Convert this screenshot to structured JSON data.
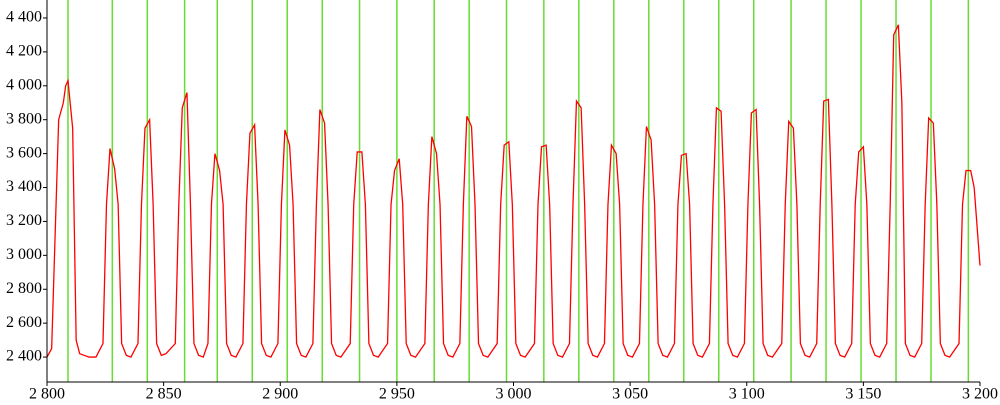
{
  "chart_data": {
    "type": "line",
    "color": "#ff0000",
    "vline_color": "#66dd33",
    "xlim": [
      2800,
      3200
    ],
    "ylim": [
      2253,
      4506
    ],
    "xticks": [
      {
        "value": 2800,
        "label": "2 800"
      },
      {
        "value": 2850,
        "label": "2 850"
      },
      {
        "value": 2900,
        "label": "2 900"
      },
      {
        "value": 2950,
        "label": "2 950"
      },
      {
        "value": 3000,
        "label": "3 000"
      },
      {
        "value": 3050,
        "label": "3 050"
      },
      {
        "value": 3100,
        "label": "3 100"
      },
      {
        "value": 3150,
        "label": "3 150"
      },
      {
        "value": 3200,
        "label": "3 200"
      }
    ],
    "yticks": [
      {
        "value": 2400,
        "label": "2 400"
      },
      {
        "value": 2600,
        "label": "2 600"
      },
      {
        "value": 2800,
        "label": "2 800"
      },
      {
        "value": 3000,
        "label": "3 000"
      },
      {
        "value": 3200,
        "label": "3 200"
      },
      {
        "value": 3400,
        "label": "3 400"
      },
      {
        "value": 3600,
        "label": "3 600"
      },
      {
        "value": 3800,
        "label": "3 800"
      },
      {
        "value": 4000,
        "label": "4 000"
      },
      {
        "value": 4200,
        "label": "4 200"
      },
      {
        "value": 4400,
        "label": "4 400"
      }
    ],
    "vlines": [
      2809,
      2828,
      2843,
      2859,
      2873,
      2888,
      2903,
      2918,
      2934,
      2950,
      2966,
      2981,
      2997,
      3013,
      3028,
      3043,
      3058,
      3073,
      3088,
      3103,
      3119,
      3134,
      3149,
      3164,
      3179,
      3195
    ],
    "x": [
      2800,
      2802,
      2805,
      2807,
      2808,
      2809,
      2811,
      2812.5,
      2814,
      2818,
      2821,
      2824,
      2825.5,
      2827,
      2829,
      2830.5,
      2832,
      2834,
      2836,
      2839,
      2840.5,
      2842,
      2844,
      2845.5,
      2847,
      2849,
      2851,
      2855,
      2856.5,
      2858,
      2860,
      2861.5,
      2863,
      2865,
      2867,
      2869,
      2870.5,
      2872,
      2874,
      2875.5,
      2877,
      2879,
      2881,
      2884,
      2885.5,
      2887,
      2889,
      2890.5,
      2892,
      2894,
      2896,
      2899,
      2900.5,
      2902,
      2904,
      2905.5,
      2907,
      2909,
      2911,
      2914,
      2915.5,
      2917,
      2919,
      2920.5,
      2922,
      2924,
      2926,
      2930,
      2931.5,
      2933,
      2935,
      2936.5,
      2938,
      2940,
      2942,
      2946,
      2947.5,
      2949,
      2951,
      2952.5,
      2954,
      2956,
      2958,
      2962,
      2963.5,
      2965,
      2967,
      2968.5,
      2970,
      2972,
      2974,
      2977,
      2978.5,
      2980,
      2982,
      2983.5,
      2985,
      2987,
      2989,
      2993,
      2994.5,
      2996,
      2998,
      2999.5,
      3001,
      3003,
      3005,
      3009,
      3010.5,
      3012,
      3014,
      3015.5,
      3017,
      3019,
      3021,
      3024,
      3025.5,
      3027,
      3029,
      3030.5,
      3032,
      3034,
      3036,
      3039,
      3040.5,
      3042,
      3044,
      3045.5,
      3047,
      3049,
      3051,
      3054,
      3055.5,
      3057,
      3059,
      3060.5,
      3062,
      3064,
      3066,
      3069,
      3070.5,
      3072,
      3074,
      3075.5,
      3077,
      3079,
      3081,
      3084,
      3085.5,
      3087,
      3089,
      3090.5,
      3092,
      3094,
      3096,
      3099,
      3100.5,
      3102,
      3104,
      3105.5,
      3107,
      3109,
      3111,
      3115,
      3116.5,
      3118,
      3120,
      3121.5,
      3123,
      3125,
      3127,
      3130,
      3131.5,
      3133,
      3135,
      3136.5,
      3138,
      3140,
      3142,
      3145,
      3146.5,
      3148,
      3150,
      3151.5,
      3153,
      3155,
      3157,
      3160,
      3161.5,
      3163,
      3165,
      3166.5,
      3168,
      3170,
      3172,
      3175,
      3176.5,
      3178,
      3180,
      3181.5,
      3183,
      3185,
      3187,
      3191,
      3192.5,
      3194,
      3196,
      3197.5,
      3200
    ],
    "values": [
      2400,
      2450,
      3800,
      3900,
      4000,
      4030,
      3750,
      2500,
      2420,
      2400,
      2400,
      2480,
      3300,
      3630,
      3510,
      3300,
      2480,
      2410,
      2400,
      2480,
      3300,
      3750,
      3800,
      3300,
      2480,
      2410,
      2420,
      2480,
      3300,
      3870,
      3960,
      3300,
      2480,
      2410,
      2400,
      2480,
      3300,
      3600,
      3500,
      3300,
      2480,
      2410,
      2400,
      2480,
      3300,
      3720,
      3770,
      3300,
      2480,
      2410,
      2400,
      2480,
      3300,
      3740,
      3650,
      3300,
      2480,
      2410,
      2400,
      2480,
      3300,
      3860,
      3780,
      3300,
      2480,
      2410,
      2400,
      2480,
      3300,
      3610,
      3610,
      3300,
      2480,
      2410,
      2400,
      2480,
      3300,
      3500,
      3570,
      3300,
      2480,
      2410,
      2400,
      2480,
      3300,
      3700,
      3600,
      3300,
      2480,
      2410,
      2400,
      2480,
      3300,
      3820,
      3760,
      3300,
      2480,
      2410,
      2400,
      2480,
      3300,
      3650,
      3670,
      3300,
      2480,
      2410,
      2400,
      2480,
      3300,
      3640,
      3650,
      3300,
      2480,
      2410,
      2400,
      2480,
      3300,
      3910,
      3870,
      3300,
      2480,
      2410,
      2400,
      2480,
      3300,
      3650,
      3600,
      3300,
      2480,
      2410,
      2400,
      2480,
      3300,
      3760,
      3680,
      3300,
      2480,
      2410,
      2400,
      2480,
      3300,
      3590,
      3600,
      3300,
      2480,
      2410,
      2400,
      2480,
      3300,
      3870,
      3850,
      3300,
      2480,
      2410,
      2400,
      2480,
      3300,
      3840,
      3860,
      3300,
      2480,
      2410,
      2400,
      2480,
      3300,
      3790,
      3750,
      3300,
      2480,
      2410,
      2400,
      2480,
      3300,
      3910,
      3920,
      3300,
      2480,
      2410,
      2400,
      2480,
      3300,
      3610,
      3640,
      3300,
      2480,
      2410,
      2400,
      2480,
      3300,
      4300,
      4360,
      3900,
      2480,
      2410,
      2400,
      2480,
      3300,
      3810,
      3780,
      3300,
      2480,
      2410,
      2400,
      2480,
      3300,
      3500,
      3500,
      3400,
      2940
    ]
  }
}
